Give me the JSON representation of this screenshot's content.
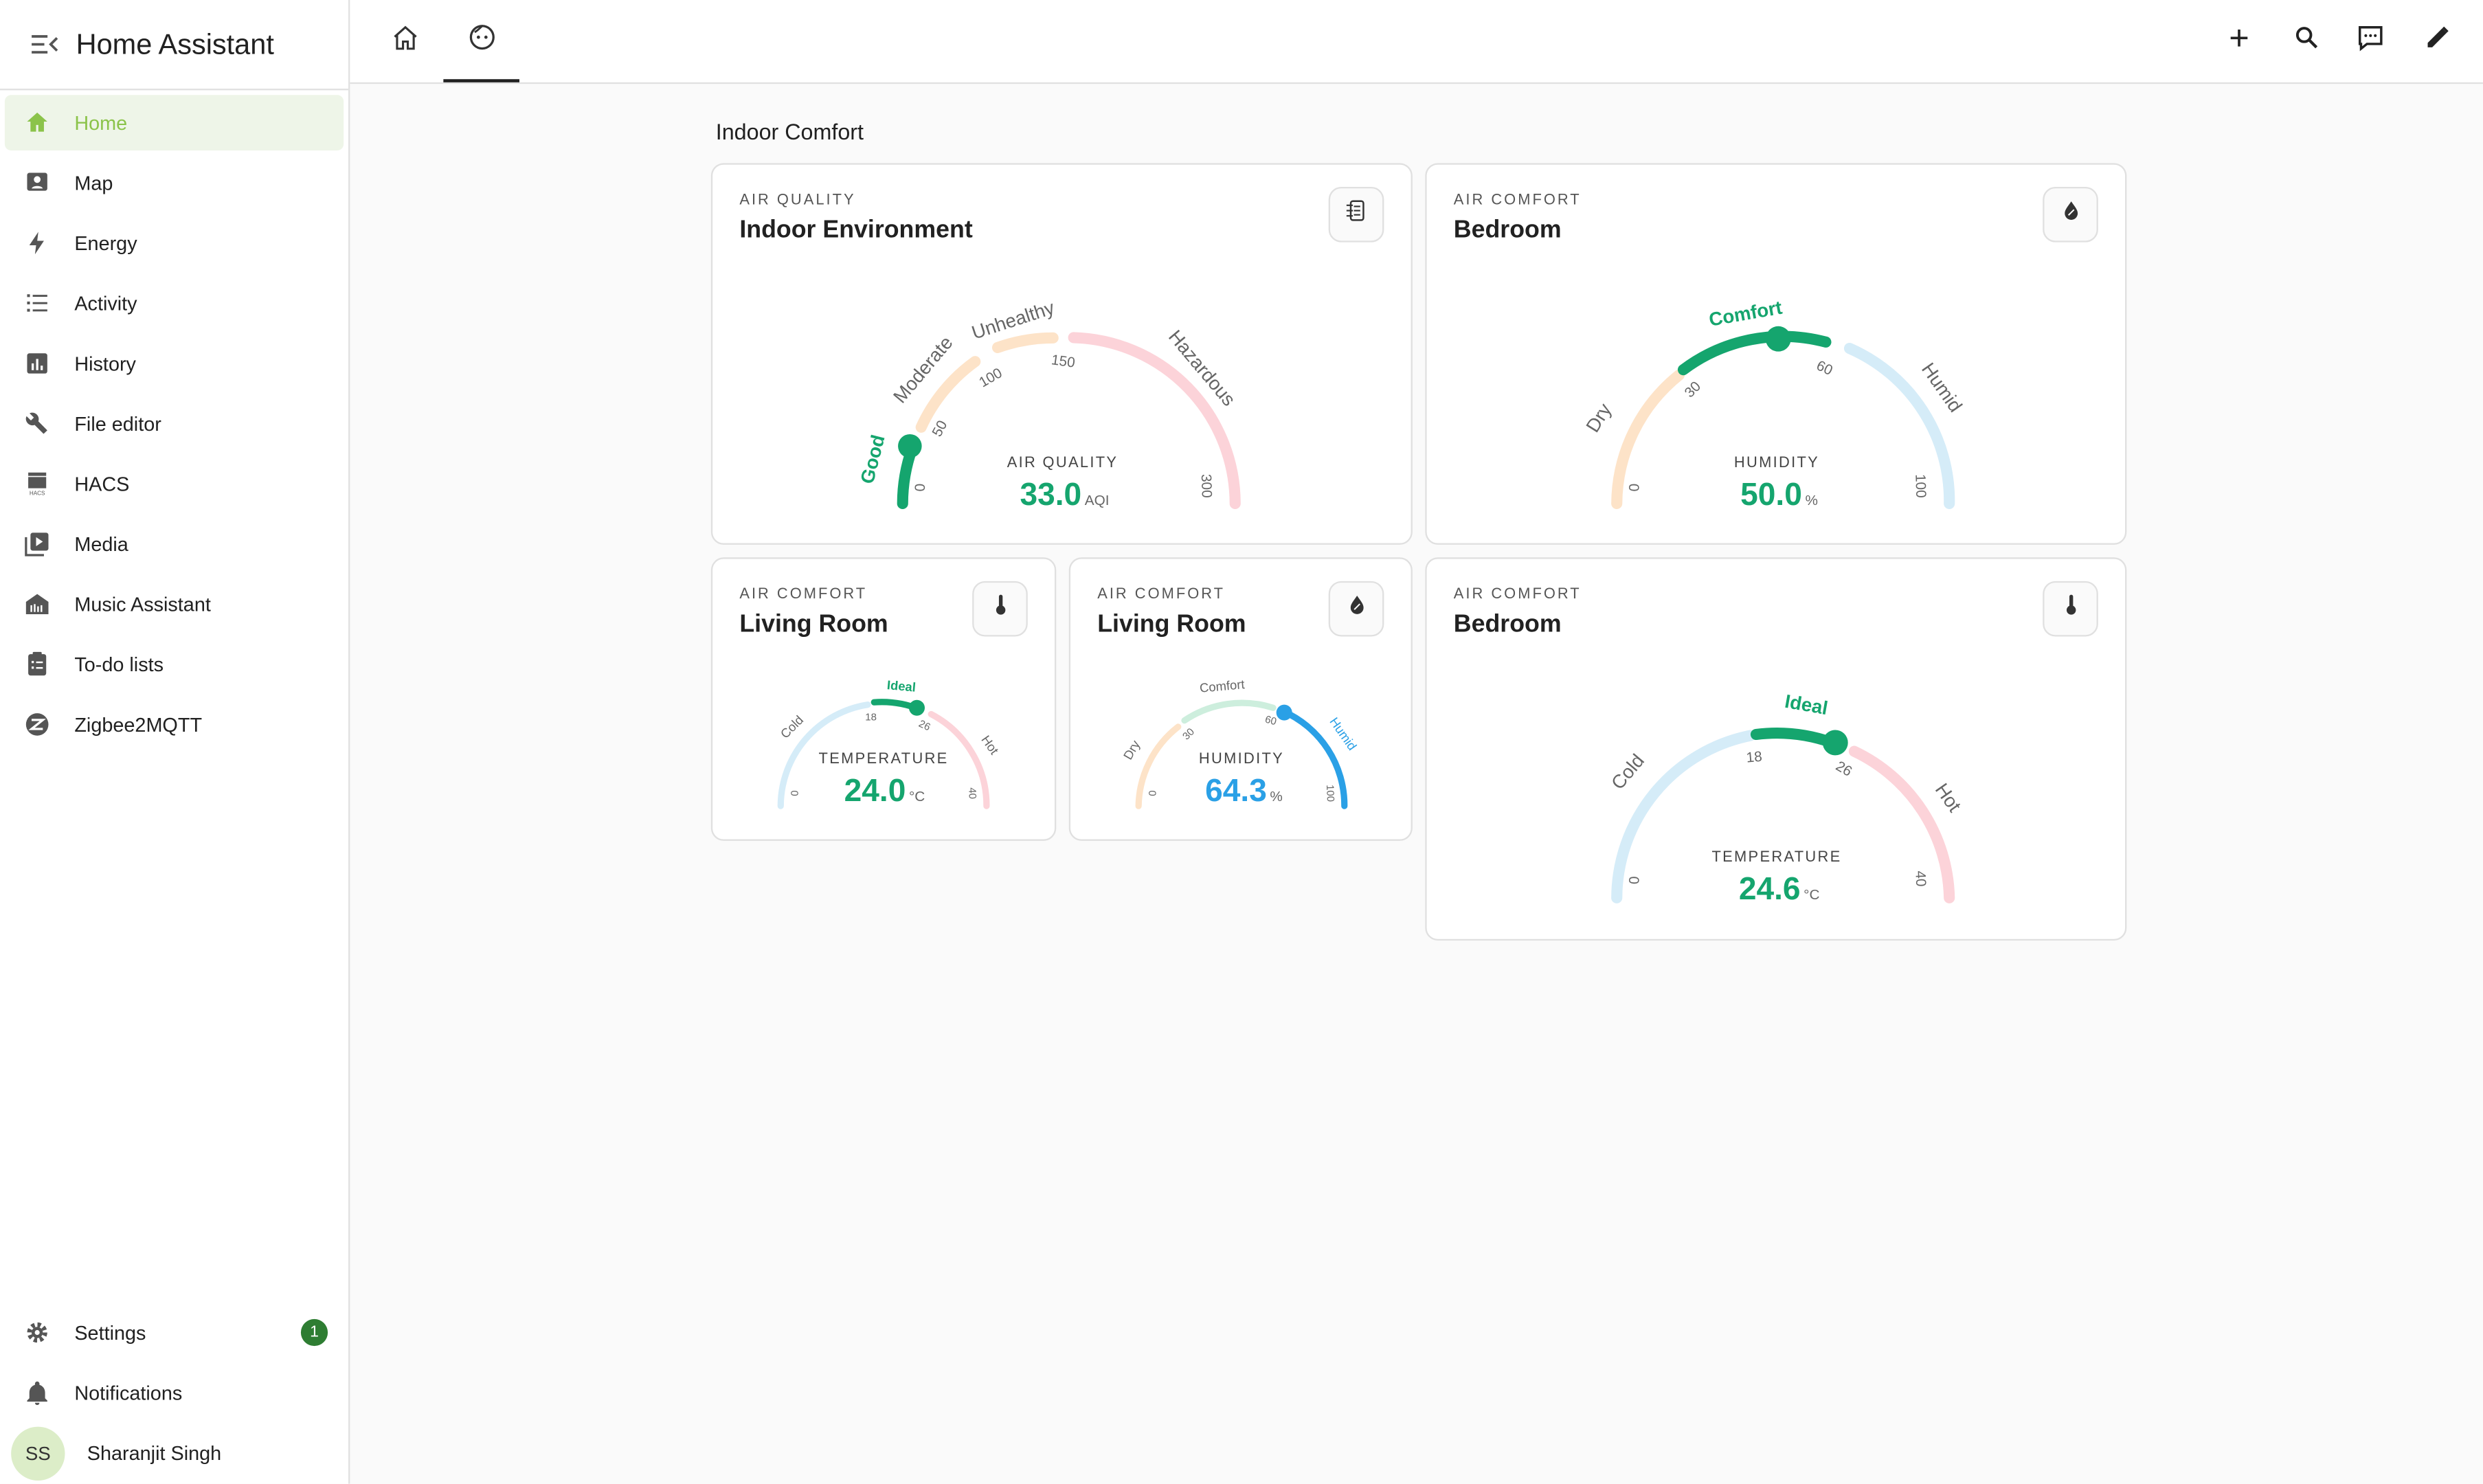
{
  "app": {
    "title": "Home Assistant"
  },
  "sidebar": {
    "items": [
      {
        "label": "Home",
        "icon": "home-icon"
      },
      {
        "label": "Map",
        "icon": "map-icon"
      },
      {
        "label": "Energy",
        "icon": "lightning-icon"
      },
      {
        "label": "Activity",
        "icon": "list-icon"
      },
      {
        "label": "History",
        "icon": "chart-icon"
      },
      {
        "label": "File editor",
        "icon": "wrench-icon"
      },
      {
        "label": "HACS",
        "icon": "hacs-icon"
      },
      {
        "label": "Media",
        "icon": "media-icon"
      },
      {
        "label": "Music Assistant",
        "icon": "music-assistant-icon"
      },
      {
        "label": "To-do lists",
        "icon": "clipboard-icon"
      },
      {
        "label": "Zigbee2MQTT",
        "icon": "zigbee-icon"
      }
    ],
    "settings": {
      "label": "Settings",
      "badge": "1"
    },
    "notifications": {
      "label": "Notifications"
    },
    "user": {
      "initials": "SS",
      "name": "Sharanjit Singh"
    }
  },
  "section": {
    "title": "Indoor Comfort"
  },
  "cards": {
    "aq": {
      "kicker": "AIR QUALITY",
      "title": "Indoor Environment",
      "gauge_label": "AIR QUALITY",
      "value": "33.0",
      "unit": "AQI",
      "bands": [
        "Good",
        "Moderate",
        "Unhealthy",
        "Hazardous"
      ],
      "ticks": [
        "0",
        "50",
        "100",
        "150",
        "300"
      ]
    },
    "bed_hum": {
      "kicker": "AIR COMFORT",
      "title": "Bedroom",
      "gauge_label": "HUMIDITY",
      "value": "50.0",
      "unit": "%",
      "bands": [
        "Dry",
        "Comfort",
        "Humid"
      ],
      "ticks": [
        "0",
        "30",
        "60",
        "100"
      ]
    },
    "lr_temp": {
      "kicker": "AIR COMFORT",
      "title": "Living Room",
      "gauge_label": "TEMPERATURE",
      "value": "24.0",
      "unit": "°C",
      "bands": [
        "Cold",
        "Ideal",
        "Hot"
      ],
      "ticks": [
        "0",
        "18",
        "26",
        "40"
      ]
    },
    "lr_hum": {
      "kicker": "AIR COMFORT",
      "title": "Living Room",
      "gauge_label": "HUMIDITY",
      "value": "64.3",
      "unit": "%",
      "bands": [
        "Dry",
        "Comfort",
        "Humid"
      ],
      "ticks": [
        "0",
        "30",
        "60",
        "100"
      ]
    },
    "bed_temp": {
      "kicker": "AIR COMFORT",
      "title": "Bedroom",
      "gauge_label": "TEMPERATURE",
      "value": "24.6",
      "unit": "°C",
      "bands": [
        "Cold",
        "Ideal",
        "Hot"
      ],
      "ticks": [
        "0",
        "18",
        "26",
        "40"
      ]
    }
  },
  "colors": {
    "green": "#15a56e",
    "blue": "#2aa0e6",
    "amber_light": "#fde3c8",
    "blue_light": "#d5ecf8",
    "red_light": "#fcd3d9",
    "green_light": "#cdeedd",
    "sidebar_active": "#8bc34a"
  }
}
